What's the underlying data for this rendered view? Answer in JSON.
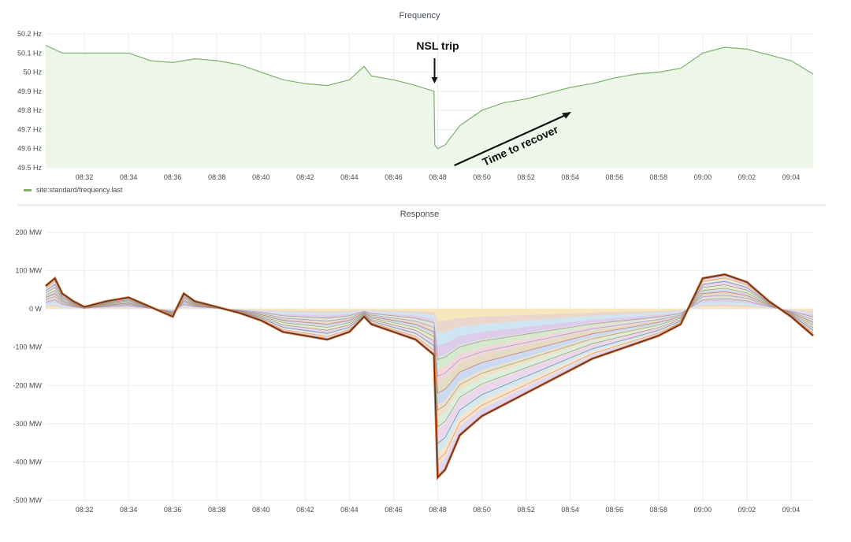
{
  "colors": {
    "frequency_line": "#7eb26d",
    "frequency_fill": "#eef5e9",
    "grid": "#e9ebed"
  },
  "chart_data": [
    {
      "type": "area",
      "title": "Frequency",
      "ylim": [
        49.5,
        50.2
      ],
      "y_ticks": [
        "50.2 Hz",
        "50.1 Hz",
        "50 Hz",
        "49.9 Hz",
        "49.8 Hz",
        "49.7 Hz",
        "49.6 Hz",
        "49.5 Hz"
      ],
      "y_tick_values": [
        50.2,
        50.1,
        50.0,
        49.9,
        49.8,
        49.7,
        49.6,
        49.5
      ],
      "x_ticks": [
        "08:32",
        "08:34",
        "08:36",
        "08:38",
        "08:40",
        "08:42",
        "08:44",
        "08:46",
        "08:48",
        "08:50",
        "08:52",
        "08:54",
        "08:56",
        "08:58",
        "09:00",
        "09:02",
        "09:04"
      ],
      "x_range": [
        "08:30:15",
        "09:05:00"
      ],
      "legend": [
        "site:standard/frequency.last"
      ],
      "legend_position": "bottom-left",
      "grid": true,
      "series": [
        {
          "name": "site:standard/frequency.last",
          "x": [
            "08:30:15",
            "08:31",
            "08:32",
            "08:33",
            "08:34",
            "08:35",
            "08:36",
            "08:37",
            "08:38",
            "08:39",
            "08:40",
            "08:41",
            "08:42",
            "08:43",
            "08:44",
            "08:44:40",
            "08:45",
            "08:46",
            "08:47",
            "08:47:50",
            "08:47:52",
            "08:48",
            "08:48:20",
            "08:49",
            "08:50",
            "08:51",
            "08:52",
            "08:53",
            "08:54",
            "08:55",
            "08:56",
            "08:57",
            "08:58",
            "08:59",
            "09:00",
            "09:01",
            "09:02",
            "09:03",
            "09:04",
            "09:05"
          ],
          "y": [
            50.14,
            50.1,
            50.1,
            50.1,
            50.1,
            50.06,
            50.05,
            50.07,
            50.06,
            50.04,
            50.0,
            49.96,
            49.94,
            49.93,
            49.96,
            50.03,
            49.98,
            49.96,
            49.93,
            49.9,
            49.62,
            49.6,
            49.62,
            49.72,
            49.8,
            49.84,
            49.86,
            49.89,
            49.92,
            49.94,
            49.97,
            49.99,
            50.0,
            50.02,
            50.1,
            50.13,
            50.12,
            50.09,
            50.06,
            49.99
          ]
        }
      ],
      "annotations": [
        {
          "text": "NSL trip",
          "x": "08:48"
        },
        {
          "text": "Time to recover",
          "x": "08:50"
        }
      ]
    },
    {
      "type": "area",
      "title": "Response",
      "ylim": [
        -500,
        200
      ],
      "y_ticks": [
        "200 MW",
        "100 MW",
        "0 W",
        "-100 MW",
        "-200 MW",
        "-300 MW",
        "-400 MW",
        "-500 MW"
      ],
      "y_tick_values": [
        200,
        100,
        0,
        -100,
        -200,
        -300,
        -400,
        -500
      ],
      "x_ticks": [
        "08:32",
        "08:34",
        "08:36",
        "08:38",
        "08:40",
        "08:42",
        "08:44",
        "08:46",
        "08:48",
        "08:50",
        "08:52",
        "08:54",
        "08:56",
        "08:58",
        "09:00",
        "09:02",
        "09:04"
      ],
      "x_range": [
        "08:30:15",
        "09:05:00"
      ],
      "grid": true,
      "stacked": true,
      "series": [
        {
          "x": [
            "08:30:15",
            "08:30:40",
            "08:31",
            "08:31:30",
            "08:32",
            "08:33",
            "08:34",
            "08:35",
            "08:36",
            "08:36:30",
            "08:37",
            "08:38",
            "08:39",
            "08:40",
            "08:41",
            "08:42",
            "08:43",
            "08:44",
            "08:44:40",
            "08:45",
            "08:46",
            "08:47",
            "08:47:50",
            "08:48",
            "08:48:20",
            "08:49",
            "08:50",
            "08:51",
            "08:52",
            "08:53",
            "08:54",
            "08:55",
            "08:56",
            "08:57",
            "08:58",
            "08:59",
            "09:00",
            "09:01",
            "09:02",
            "09:03",
            "09:04",
            "09:05"
          ],
          "y": [
            60,
            80,
            40,
            20,
            5,
            20,
            30,
            5,
            -20,
            40,
            20,
            5,
            -10,
            -30,
            -60,
            -70,
            -80,
            -60,
            -20,
            -40,
            -60,
            -80,
            -120,
            -440,
            -420,
            -330,
            -280,
            -250,
            -220,
            -190,
            -160,
            -130,
            -110,
            -90,
            -70,
            -40,
            80,
            90,
            70,
            20,
            -20,
            -70
          ]
        }
      ]
    }
  ]
}
